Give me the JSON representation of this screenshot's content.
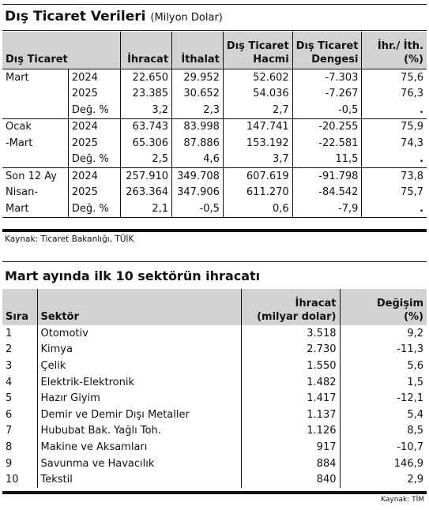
{
  "table1": {
    "title": "Dış Ticaret Verileri",
    "unit": "(Milyon Dolar)",
    "headers": {
      "group": "Dış Ticaret",
      "export": "İhracat",
      "import": "İthalat",
      "volume_1": "Dış Ticaret",
      "volume_2": "Hacmi",
      "balance_1": "Dış Ticaret",
      "balance_2": "Dengesi",
      "ratio_1": "İhr./ İth.",
      "ratio_2": "(%)"
    },
    "groups": [
      {
        "label_lines": [
          "Mart",
          "",
          ""
        ],
        "rows": [
          {
            "period": "2024",
            "export": "22.650",
            "import": "29.952",
            "volume": "52.602",
            "balance": "-7.303",
            "ratio": "75,6"
          },
          {
            "period": "2025",
            "export": "23.385",
            "import": "30.652",
            "volume": "54.036",
            "balance": "-7.267",
            "ratio": "76,3"
          },
          {
            "period": "Değ. %",
            "export": "3,2",
            "import": "2,3",
            "volume": "2,7",
            "balance": "-0,5",
            "ratio": "."
          }
        ]
      },
      {
        "label_lines": [
          "Ocak",
          "-Mart",
          ""
        ],
        "rows": [
          {
            "period": "2024",
            "export": "63.743",
            "import": "83.998",
            "volume": "147.741",
            "balance": "-20.255",
            "ratio": "75,9"
          },
          {
            "period": "2025",
            "export": "65.306",
            "import": "87.886",
            "volume": "153.192",
            "balance": "-22.581",
            "ratio": "74,3"
          },
          {
            "period": "Değ. %",
            "export": "2,5",
            "import": "4,6",
            "volume": "3,7",
            "balance": "11,5",
            "ratio": "."
          }
        ]
      },
      {
        "label_lines": [
          "Son 12 Ay",
          "Nisan-",
          "Mart"
        ],
        "rows": [
          {
            "period": "2024",
            "export": "257.910",
            "import": "349.708",
            "volume": "607.619",
            "balance": "-91.798",
            "ratio": "73,8"
          },
          {
            "period": "2025",
            "export": "263.364",
            "import": "347.906",
            "volume": "611.270",
            "balance": "-84.542",
            "ratio": "75,7"
          },
          {
            "period": "Değ. %",
            "export": "2,1",
            "import": "-0,5",
            "volume": "0,6",
            "balance": "-7,9",
            "ratio": "."
          }
        ]
      }
    ],
    "source": "Kaynak: Ticaret Bakanlığı, TÜİK"
  },
  "table2": {
    "title": "Mart ayında ilk 10 sektörün ihracatı",
    "headers": {
      "rank": "Sıra",
      "sector": "Sektör",
      "export_1": "İhracat",
      "export_2": "(milyar dolar)",
      "change_1": "Değişim",
      "change_2": "(%)"
    },
    "rows": [
      {
        "rank": "1",
        "sector": "Otomotiv",
        "export": "3.518",
        "change": "9,2"
      },
      {
        "rank": "2",
        "sector": "Kimya",
        "export": "2.730",
        "change": "-11,3"
      },
      {
        "rank": "3",
        "sector": "Çelik",
        "export": "1.550",
        "change": "5,6"
      },
      {
        "rank": "4",
        "sector": "Elektrik-Elektronik",
        "export": "1.482",
        "change": "1,5"
      },
      {
        "rank": "5",
        "sector": "Hazır Giyim",
        "export": "1.417",
        "change": "-12,1"
      },
      {
        "rank": "6",
        "sector": "Demir ve Demir Dışı Metaller",
        "export": "1.137",
        "change": "5,4"
      },
      {
        "rank": "7",
        "sector": "Hububat Bak. Yağlı Toh.",
        "export": "1.126",
        "change": "8,5"
      },
      {
        "rank": "8",
        "sector": "Makine ve Aksamları",
        "export": "917",
        "change": "-10,7"
      },
      {
        "rank": "9",
        "sector": "Savunma ve Havacılık",
        "export": "884",
        "change": "146,9"
      },
      {
        "rank": "10",
        "sector": "Tekstil",
        "export": "840",
        "change": "2,9"
      }
    ],
    "source": "Kaynak: TİM"
  }
}
